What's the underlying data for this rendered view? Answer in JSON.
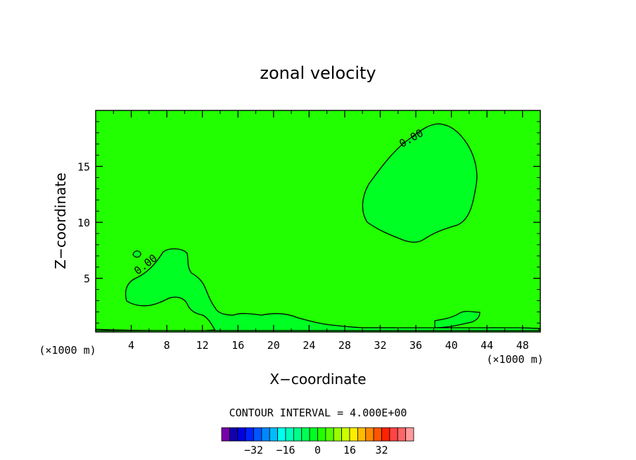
{
  "chart_data": {
    "type": "contour",
    "title": "zonal velocity",
    "xlabel": "X−coordinate",
    "ylabel": "Z−coordinate",
    "x_unit": "(×1000 m)",
    "y_unit": "(×1000 m)",
    "xlim": [
      0,
      50
    ],
    "ylim": [
      0.2,
      20
    ],
    "x_ticks": [
      4,
      8,
      12,
      16,
      20,
      24,
      28,
      32,
      36,
      40,
      44,
      48
    ],
    "y_ticks": [
      5,
      10,
      15
    ],
    "contour_label": "0.00",
    "contour_interval_text": "CONTOUR INTERVAL = 4.000E+00",
    "background_color": "#22ff00",
    "contour_fill_color": "#00ff22",
    "colorbar": {
      "colors": [
        "#7700aa",
        "#1100aa",
        "#0000dd",
        "#0022ff",
        "#0055ff",
        "#0088ff",
        "#00bbff",
        "#00ffee",
        "#00ffbb",
        "#00ff88",
        "#00ff55",
        "#00ff22",
        "#22ff00",
        "#55ff00",
        "#99ff00",
        "#ccff00",
        "#ffee00",
        "#ffbb00",
        "#ff8800",
        "#ff5500",
        "#ff2200",
        "#ff4444",
        "#ff6666",
        "#ff9999"
      ],
      "tick_labels": [
        "−32",
        "−16",
        "0",
        "16",
        "32"
      ],
      "tick_values": [
        -32,
        -16,
        0,
        16,
        32
      ]
    }
  }
}
